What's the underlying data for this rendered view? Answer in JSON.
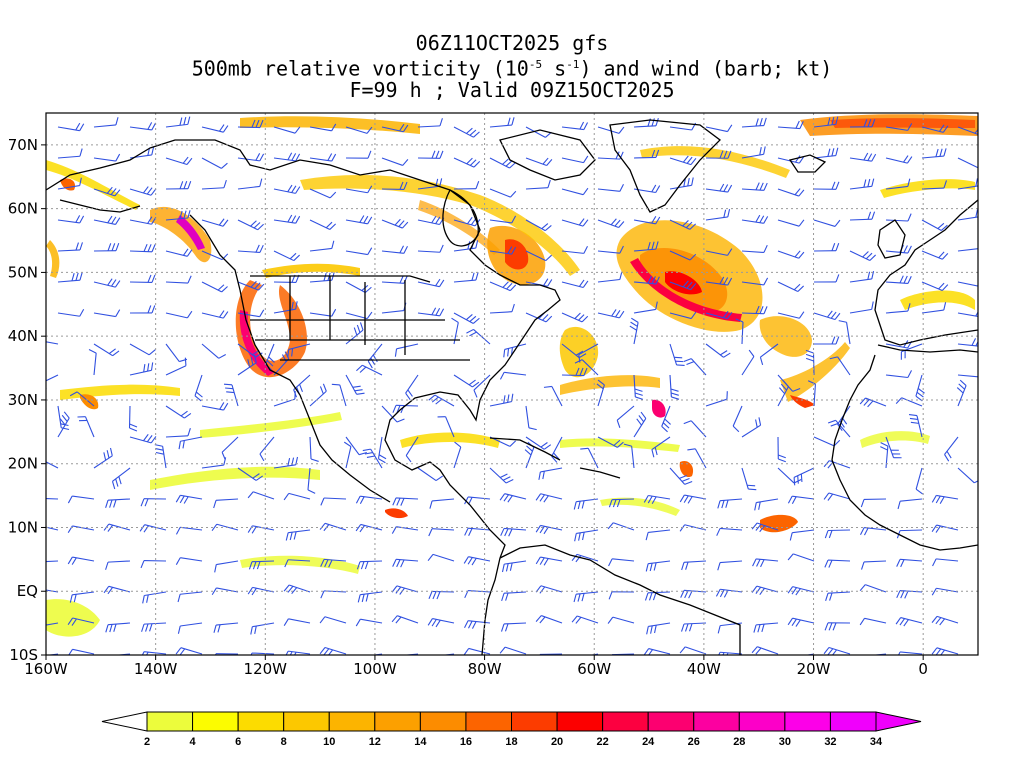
{
  "title": {
    "line1": "06Z11OCT2025 gfs",
    "line2_prefix": "500mb relative vorticity (10",
    "line2_exp1": "-5",
    "line2_mid": " s",
    "line2_exp2": "-1",
    "line2_suffix": ") and wind (barb; kt)",
    "line3": "F=99 h ; Valid 09Z15OCT2025"
  },
  "map": {
    "lon_range": [
      -160,
      10
    ],
    "lat_range": [
      -10,
      75
    ],
    "lat_ticks": [
      {
        "value": 70,
        "label": "70N"
      },
      {
        "value": 60,
        "label": "60N"
      },
      {
        "value": 50,
        "label": "50N"
      },
      {
        "value": 40,
        "label": "40N"
      },
      {
        "value": 30,
        "label": "30N"
      },
      {
        "value": 20,
        "label": "20N"
      },
      {
        "value": 10,
        "label": "10N"
      },
      {
        "value": 0,
        "label": "EQ"
      },
      {
        "value": -10,
        "label": "10S"
      }
    ],
    "lon_ticks": [
      {
        "value": -160,
        "label": "160W"
      },
      {
        "value": -140,
        "label": "140W"
      },
      {
        "value": -120,
        "label": "120W"
      },
      {
        "value": -100,
        "label": "100W"
      },
      {
        "value": -80,
        "label": "80W"
      },
      {
        "value": -60,
        "label": "60W"
      },
      {
        "value": -40,
        "label": "40W"
      },
      {
        "value": -20,
        "label": "20W"
      },
      {
        "value": 0,
        "label": "0"
      }
    ],
    "colors": {
      "barb": "#3050e0",
      "coast": "#000000",
      "grid": "#9a9a9a"
    }
  },
  "colorbar": {
    "labels": [
      "2",
      "4",
      "6",
      "8",
      "10",
      "12",
      "14",
      "16",
      "18",
      "20",
      "22",
      "24",
      "26",
      "28",
      "30",
      "32",
      "34"
    ],
    "colors": [
      "#ecfc3c",
      "#fcfc00",
      "#fcdc00",
      "#fcc800",
      "#fcb400",
      "#fca000",
      "#fc8c00",
      "#fc6400",
      "#fc3c00",
      "#fc0000",
      "#fc0040",
      "#fc0070",
      "#fc00a0",
      "#fc00c8",
      "#fc00e8",
      "#f000fc"
    ],
    "under_color": "#ffffff",
    "over_color": "#f000fc"
  }
}
